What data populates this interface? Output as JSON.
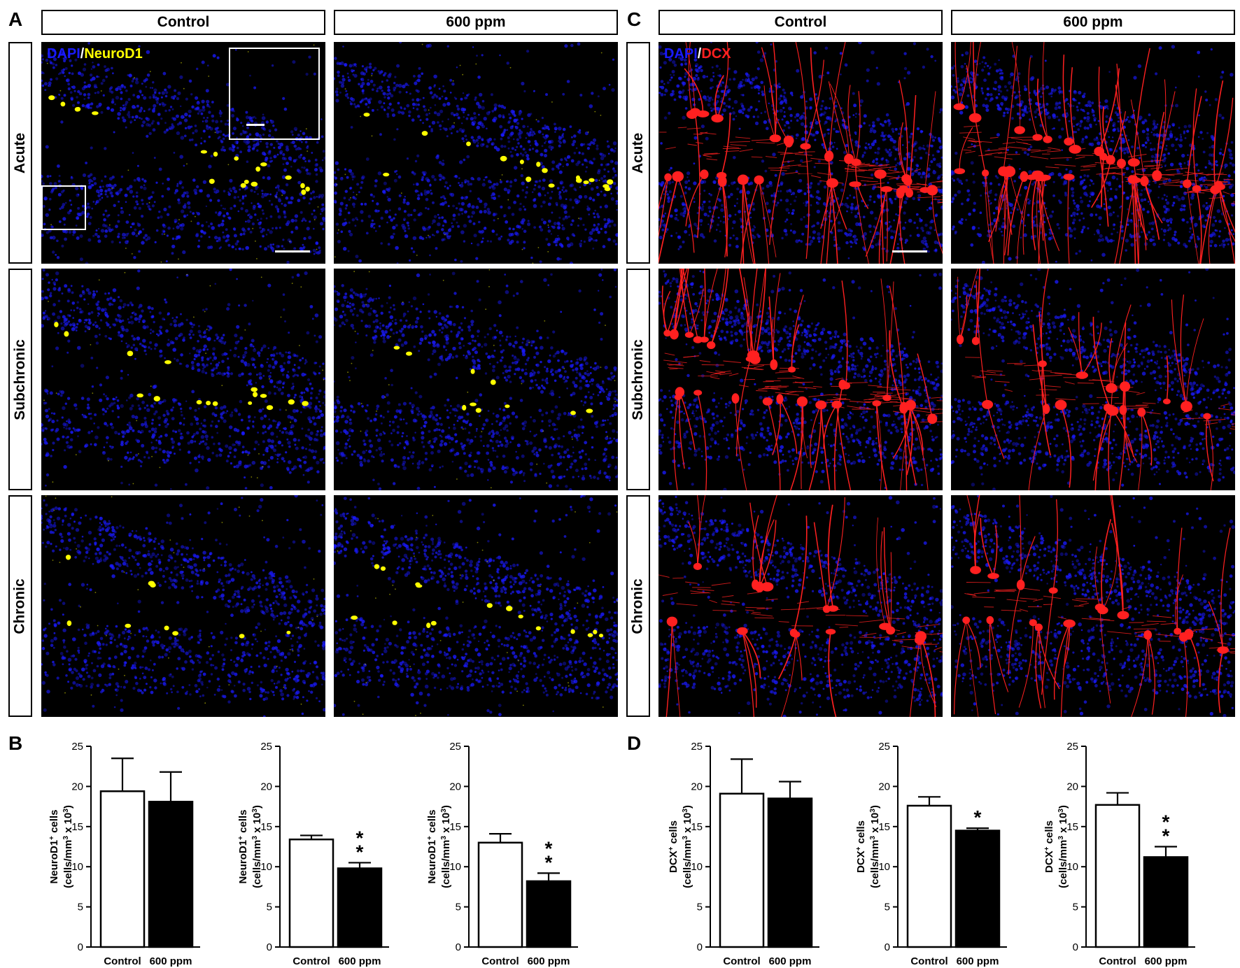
{
  "figure": {
    "panel_letters": {
      "a": "A",
      "b": "B",
      "c": "C",
      "d": "D"
    },
    "column_headers": {
      "control": "Control",
      "treated": "600 ppm"
    },
    "row_labels": [
      "Acute",
      "Subchronic",
      "Chronic"
    ],
    "stains": {
      "left": {
        "dapi": "DAPI",
        "sep": "/",
        "marker": "NeuroD1"
      },
      "right": {
        "dapi": "DAPI",
        "sep": "/",
        "marker": "DCX"
      }
    },
    "colors": {
      "dapi": "#1a1aff",
      "neurod1": "#ffff00",
      "dcx": "#ff2020",
      "background": "#000000"
    }
  },
  "chart_data": [
    {
      "type": "bar",
      "panel": "B",
      "categories": [
        "Control",
        "600 ppm"
      ],
      "group_label": "Acute",
      "values": [
        19.4,
        18.1
      ],
      "errors": [
        4.1,
        3.7
      ],
      "ylabel_line1": "NeuroD1",
      "ylabel_sup1": "+",
      "ylabel_line1b": " cells",
      "ylabel_line2": "(cells/mm",
      "ylabel_sup2": "3",
      "ylabel_line2b": " x 10",
      "ylabel_sup3": "3",
      "ylabel_line2c": ")",
      "ylim": [
        0,
        25
      ],
      "yticks": [
        0,
        5,
        10,
        15,
        20,
        25
      ],
      "significance": [
        "",
        ""
      ]
    },
    {
      "type": "bar",
      "panel": "B",
      "categories": [
        "Control",
        "600 ppm"
      ],
      "group_label": "Subchronic",
      "values": [
        13.4,
        9.8
      ],
      "errors": [
        0.5,
        0.7
      ],
      "ylabel_line1": "NeuroD1",
      "ylabel_sup1": "+",
      "ylabel_line1b": " cells",
      "ylabel_line2": "(cells/mm",
      "ylabel_sup2": "3",
      "ylabel_line2b": " x 10",
      "ylabel_sup3": "3",
      "ylabel_line2c": ")",
      "ylim": [
        0,
        25
      ],
      "yticks": [
        0,
        5,
        10,
        15,
        20,
        25
      ],
      "significance": [
        "",
        "**"
      ]
    },
    {
      "type": "bar",
      "panel": "B",
      "categories": [
        "Control",
        "600 ppm"
      ],
      "group_label": "Chronic",
      "values": [
        13.0,
        8.2
      ],
      "errors": [
        1.1,
        1.0
      ],
      "ylabel_line1": "NeuroD1",
      "ylabel_sup1": "+",
      "ylabel_line1b": " cells",
      "ylabel_line2": "(cells/mm",
      "ylabel_sup2": "3",
      "ylabel_line2b": " x 10",
      "ylabel_sup3": "3",
      "ylabel_line2c": ")",
      "ylim": [
        0,
        25
      ],
      "yticks": [
        0,
        5,
        10,
        15,
        20,
        25
      ],
      "significance": [
        "",
        "**"
      ]
    },
    {
      "type": "bar",
      "panel": "D",
      "categories": [
        "Control",
        "600 ppm"
      ],
      "group_label": "Acute",
      "values": [
        19.1,
        18.5
      ],
      "errors": [
        4.3,
        2.1
      ],
      "ylabel_line1": "DCX",
      "ylabel_sup1": "+",
      "ylabel_line1b": " cells",
      "ylabel_line2": "(cells/mm",
      "ylabel_sup2": "3",
      "ylabel_line2b": " x 10",
      "ylabel_sup3": "3",
      "ylabel_line2c": ")",
      "ylim": [
        0,
        25
      ],
      "yticks": [
        0,
        5,
        10,
        15,
        20,
        25
      ],
      "significance": [
        "",
        ""
      ]
    },
    {
      "type": "bar",
      "panel": "D",
      "categories": [
        "Control",
        "600 ppm"
      ],
      "group_label": "Subchronic",
      "values": [
        17.6,
        14.5
      ],
      "errors": [
        1.1,
        0.3
      ],
      "ylabel_line1": "DCX",
      "ylabel_sup1": "+",
      "ylabel_line1b": " cells",
      "ylabel_line2": "(cells/mm",
      "ylabel_sup2": "3",
      "ylabel_line2b": " x 10",
      "ylabel_sup3": "3",
      "ylabel_line2c": ")",
      "ylim": [
        0,
        25
      ],
      "yticks": [
        0,
        5,
        10,
        15,
        20,
        25
      ],
      "significance": [
        "",
        "*"
      ]
    },
    {
      "type": "bar",
      "panel": "D",
      "categories": [
        "Control",
        "600 ppm"
      ],
      "group_label": "Chronic",
      "values": [
        17.7,
        11.2
      ],
      "errors": [
        1.5,
        1.3
      ],
      "ylabel_line1": "DCX",
      "ylabel_sup1": "+",
      "ylabel_line1b": " cells",
      "ylabel_line2": "(cells/mm",
      "ylabel_sup2": "3",
      "ylabel_line2b": " x 10",
      "ylabel_sup3": "3",
      "ylabel_line2c": ")",
      "ylim": [
        0,
        25
      ],
      "yticks": [
        0,
        5,
        10,
        15,
        20,
        25
      ],
      "significance": [
        "",
        "**"
      ]
    }
  ]
}
